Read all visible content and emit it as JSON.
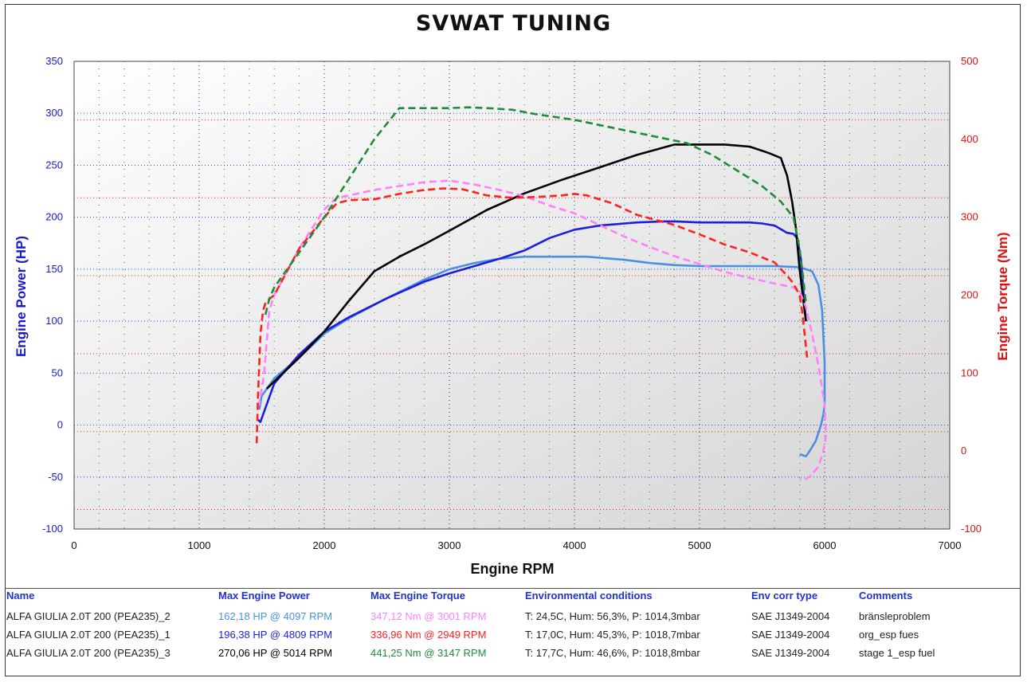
{
  "title": "SVWAT TUNING",
  "chart_data": {
    "type": "line",
    "xlabel": "Engine RPM",
    "ylabel_left": "Engine Power (HP)",
    "ylabel_right": "Engine Torque (Nm)",
    "xlim": [
      0,
      7000
    ],
    "ylim_left": [
      -100,
      350
    ],
    "ylim_right": [
      -100,
      500
    ],
    "xticks": [
      "0",
      "1000",
      "2000",
      "3000",
      "4000",
      "5000",
      "6000",
      "7000"
    ],
    "yticks_left": [
      "350",
      "300",
      "250",
      "200",
      "150",
      "100",
      "50",
      "0",
      "-50",
      "-100"
    ],
    "yticks_right": [
      "500",
      "400",
      "300",
      "200",
      "100",
      "0",
      "-100"
    ],
    "grid": true,
    "series": [
      {
        "axis": "left",
        "color": "#4a90e2",
        "dash": false,
        "x": [
          1480,
          1500,
          1600,
          1800,
          2000,
          2200,
          2500,
          2800,
          3000,
          3200,
          3400,
          3600,
          3800,
          4000,
          4100,
          4200,
          4400,
          4600,
          4800,
          5000,
          5200,
          5400,
          5600,
          5800,
          5900,
          5950,
          5980,
          6000,
          6000,
          5990,
          5970,
          5930,
          5880,
          5850,
          5800
        ],
        "y": [
          15,
          28,
          45,
          65,
          88,
          103,
          122,
          140,
          150,
          156,
          160,
          162,
          162,
          162,
          162,
          161,
          159,
          156,
          154,
          153,
          153,
          153,
          153,
          152,
          148,
          135,
          110,
          60,
          20,
          10,
          0,
          -15,
          -25,
          -30,
          -28
        ]
      },
      {
        "axis": "left",
        "color": "#1e1ee0",
        "dash": false,
        "x": [
          1470,
          1490,
          1510,
          1600,
          1800,
          2000,
          2200,
          2500,
          2800,
          3000,
          3200,
          3400,
          3600,
          3800,
          4000,
          4200,
          4500,
          4700,
          4809,
          5000,
          5200,
          5400,
          5500,
          5600,
          5700,
          5750,
          5780,
          5810,
          5830,
          5850
        ],
        "y": [
          5,
          3,
          10,
          40,
          68,
          90,
          104,
          122,
          138,
          146,
          153,
          160,
          168,
          180,
          188,
          192,
          195,
          196,
          196,
          195,
          195,
          195,
          194,
          192,
          185,
          184,
          180,
          160,
          130,
          100
        ]
      },
      {
        "axis": "left",
        "color": "#000000",
        "dash": false,
        "x": [
          1540,
          1600,
          1800,
          2000,
          2200,
          2400,
          2600,
          2800,
          3000,
          3300,
          3600,
          3900,
          4200,
          4500,
          4800,
          5014,
          5200,
          5400,
          5550,
          5650,
          5700,
          5740,
          5770,
          5800,
          5830,
          5850
        ],
        "y": [
          35,
          42,
          65,
          90,
          120,
          148,
          162,
          174,
          187,
          207,
          223,
          236,
          248,
          260,
          270,
          270,
          270,
          268,
          262,
          257,
          240,
          215,
          190,
          150,
          120,
          100
        ]
      },
      {
        "axis": "right",
        "color": "#ff80ff",
        "dash": true,
        "x": [
          1460,
          1480,
          1520,
          1560,
          1600,
          1700,
          1800,
          2000,
          2100,
          2200,
          2400,
          2600,
          2800,
          3001,
          3200,
          3400,
          3600,
          3800,
          4000,
          4200,
          4400,
          4600,
          4800,
          5000,
          5200,
          5400,
          5600,
          5750,
          5800,
          5850,
          5900,
          5950,
          6000,
          6010,
          5990,
          5950,
          5880,
          5830,
          5800
        ],
        "y": [
          60,
          60,
          100,
          180,
          200,
          230,
          260,
          310,
          325,
          328,
          335,
          340,
          345,
          347,
          342,
          335,
          327,
          315,
          305,
          290,
          275,
          262,
          250,
          240,
          230,
          222,
          215,
          210,
          205,
          185,
          150,
          110,
          60,
          20,
          0,
          -20,
          -33,
          -37,
          -36
        ]
      },
      {
        "axis": "right",
        "color": "#ff2020",
        "dash": true,
        "x": [
          1460,
          1470,
          1490,
          1510,
          1530,
          1560,
          1600,
          1700,
          1800,
          2000,
          2100,
          2200,
          2400,
          2600,
          2800,
          2949,
          3100,
          3300,
          3500,
          3700,
          3900,
          4000,
          4100,
          4300,
          4500,
          4800,
          5000,
          5200,
          5400,
          5600,
          5700,
          5750,
          5800,
          5820,
          5840,
          5860
        ],
        "y": [
          10,
          70,
          150,
          180,
          190,
          195,
          200,
          230,
          260,
          300,
          318,
          322,
          323,
          330,
          335,
          337,
          336,
          328,
          325,
          326,
          328,
          330,
          328,
          318,
          303,
          290,
          278,
          265,
          255,
          242,
          225,
          215,
          200,
          180,
          150,
          120
        ]
      },
      {
        "axis": "right",
        "color": "#1e8c3a",
        "dash": true,
        "x": [
          1530,
          1560,
          1600,
          1800,
          2000,
          2200,
          2400,
          2500,
          2600,
          2800,
          3000,
          3147,
          3300,
          3500,
          3700,
          4000,
          4300,
          4600,
          4900,
          5100,
          5300,
          5500,
          5650,
          5750,
          5800,
          5830,
          5850
        ],
        "y": [
          175,
          195,
          210,
          255,
          300,
          350,
          400,
          420,
          440,
          440,
          440,
          441,
          440,
          438,
          432,
          425,
          415,
          405,
          395,
          380,
          360,
          340,
          320,
          300,
          260,
          220,
          190
        ]
      }
    ]
  },
  "legend": {
    "headers": {
      "name": "Name",
      "power": "Max Engine Power",
      "torque": "Max Engine Torque",
      "env": "Environmental conditions",
      "corr": "Env corr type",
      "comments": "Comments"
    },
    "rows": [
      {
        "name": "ALFA GIULIA 2.0T 200 (PEA235)_2",
        "power": "162,18 HP @ 4097 RPM",
        "power_color": "#4a90e2",
        "torque": "347,12 Nm @ 3001 RPM",
        "torque_color": "#ff80ff",
        "env": "T: 24,5C, Hum: 56,3%, P: 1014,3mbar",
        "corr": "SAE J1349-2004",
        "comments": "bränsleproblem"
      },
      {
        "name": "ALFA GIULIA 2.0T 200 (PEA235)_1",
        "power": "196,38 HP @ 4809 RPM",
        "power_color": "#1e1ee0",
        "torque": "336,96 Nm @ 2949 RPM",
        "torque_color": "#ff2020",
        "env": "T: 17,0C, Hum: 45,3%, P: 1018,7mbar",
        "corr": "SAE J1349-2004",
        "comments": "org_esp fues"
      },
      {
        "name": "ALFA GIULIA 2.0T 200 (PEA235)_3",
        "power": "270,06 HP @ 5014 RPM",
        "power_color": "#000000",
        "torque": "441,25 Nm @ 3147 RPM",
        "torque_color": "#1e8c3a",
        "env": "T: 17,7C, Hum: 46,6%, P: 1018,8mbar",
        "corr": "SAE J1349-2004",
        "comments": "stage 1_esp fuel"
      }
    ]
  },
  "colors": {
    "axis_left": "#1a1acc",
    "axis_right": "#dd1111",
    "grid_blue": "#2244ee",
    "grid_red": "#ee2222",
    "grid_green": "#228833"
  }
}
